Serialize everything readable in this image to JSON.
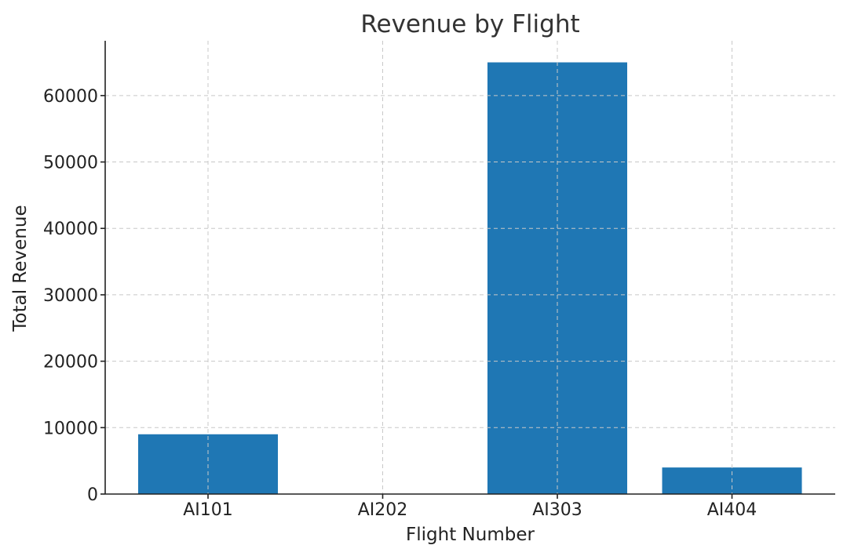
{
  "chart_data": {
    "type": "bar",
    "title": "Revenue by Flight",
    "xlabel": "Flight Number",
    "ylabel": "Total Revenue",
    "categories": [
      "AI101",
      "AI202",
      "AI303",
      "AI404"
    ],
    "values": [
      9000,
      0,
      65000,
      4000
    ],
    "ylim": [
      0,
      68250
    ],
    "yticks": [
      0,
      10000,
      20000,
      30000,
      40000,
      50000,
      60000
    ],
    "grid": true,
    "bar_color": "#1f77b4"
  }
}
